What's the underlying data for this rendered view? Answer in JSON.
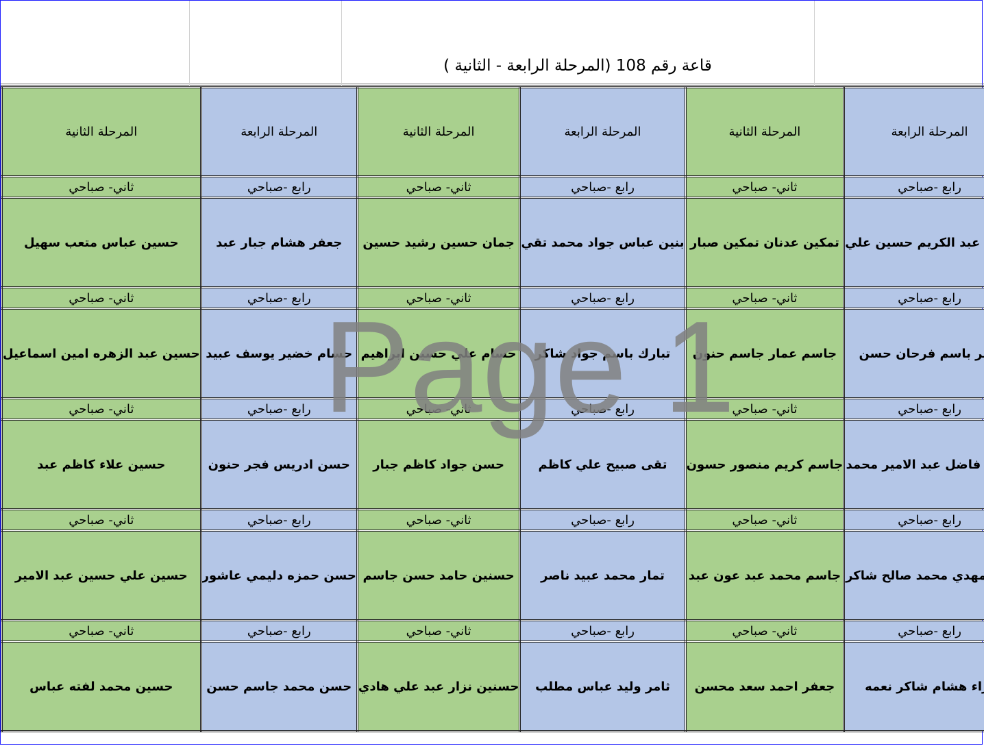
{
  "title": "قاعة رقم 108 (المرحلة الرابعة - الثانية )",
  "watermark": "Page 1",
  "colors": {
    "fourth_stage": "#b4c6e7",
    "second_stage": "#a9d08e"
  },
  "columns": [
    {
      "stage": "المرحلة الرابعة",
      "shift": "رابع -صباحي",
      "color": "blue",
      "names": [
        "أريام عبد الكريم حسين علي",
        "باقر باسم فرحان حسن",
        "بتول فاضل عبد الامير محمد",
        "براء مهدي محمد صالح شاكر",
        "براء هشام شاكر نعمه"
      ]
    },
    {
      "stage": "المرحلة الثانية",
      "shift": "ثاني- صباحي",
      "color": "green",
      "names": [
        "تمكين عدنان تمكين صبار",
        "جاسم عمار جاسم حنون",
        "جاسم كريم منصور حسون",
        "جاسم محمد عبد عون عبد",
        "جعفر احمد سعد محسن"
      ]
    },
    {
      "stage": "المرحلة الرابعة",
      "shift": "رابع -صباحي",
      "color": "blue",
      "names": [
        "بنين عباس جواد محمد تقي",
        "تبارك باسم جواد شاكر",
        "تقى صبيح علي كاظم",
        "تمار محمد عبيد ناصر",
        "ثامر وليد عباس مطلب"
      ]
    },
    {
      "stage": "المرحلة الثانية",
      "shift": "ثاني- صباحي",
      "color": "green",
      "names": [
        "جمان حسين رشيد حسين",
        "حسام علي حسين ابراهيم",
        "حسن جواد كاظم جبار",
        "حسنين حامد حسن جاسم",
        "حسنين نزار عبد علي هادي"
      ]
    },
    {
      "stage": "المرحلة الرابعة",
      "shift": "رابع -صباحي",
      "color": "blue",
      "names": [
        "جعفر هشام جبار عبد",
        "حسام خضير يوسف عبيد",
        "حسن ادريس فجر حنون",
        "حسن حمزه دليمي عاشور",
        "حسن محمد جاسم حسن"
      ]
    },
    {
      "stage": "المرحلة الثانية",
      "shift": "ثاني- صباحي",
      "color": "green",
      "names": [
        "حسين عباس متعب سهيل",
        "حسين عبد الزهره امين اسماعيل",
        "حسين علاء كاظم عبد",
        "حسين علي حسين عبد الامير",
        "حسين محمد لفته عباس"
      ]
    }
  ]
}
